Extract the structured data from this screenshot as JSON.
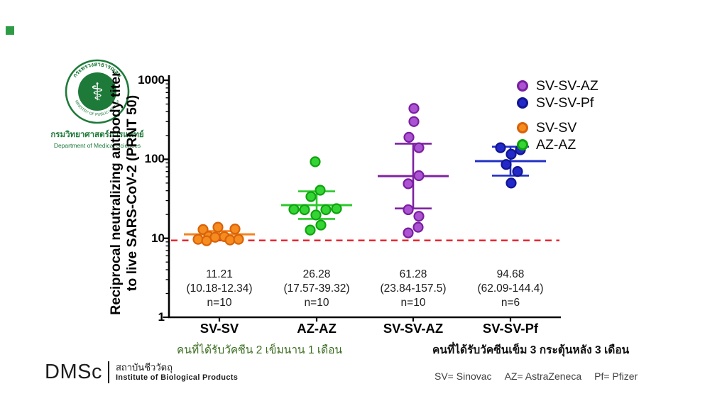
{
  "logo": {
    "rim_text_top": "กระทรวงสาธารณสุข",
    "rim_text_bottom": "MINISTRY OF PUBLIC HEALTH",
    "symbol": "⚕",
    "name_thai": "กรมวิทยาศาสตร์การแพทย์",
    "name_english": "Department of Medical Sciences",
    "color": "#1E7A39"
  },
  "chart_data": {
    "type": "scatter",
    "ylabel_line1": "Reciprocal neutralizing antibody titer",
    "ylabel_line2": "to live SARS-CoV-2 (PRNT 50)",
    "yscale": "log",
    "ylim": [
      1,
      1000
    ],
    "ytick_labels": [
      "1000",
      "100",
      "10",
      "1"
    ],
    "grid": false,
    "detection_line": {
      "value": 9.4,
      "color": "#EC1C24",
      "style": "dashed"
    },
    "groups": [
      {
        "label": "SV-SV",
        "fill": "#F68B1F",
        "stroke": "#D86309",
        "line": "#F5821E",
        "median": 11.21,
        "ci_low": 10.18,
        "ci_high": 12.34,
        "n": 10,
        "stats": [
          "11.21",
          "(10.18-12.34)",
          "n=10"
        ],
        "points": [
          [
            -23,
            12.9
          ],
          [
            -2,
            13.8
          ],
          [
            22,
            13.1
          ],
          [
            -15,
            10.6
          ],
          [
            -6,
            10.3
          ],
          [
            7,
            10.5
          ],
          [
            -30,
            9.7
          ],
          [
            -18,
            9.3
          ],
          [
            15,
            9.5
          ],
          [
            27,
            9.7
          ]
        ]
      },
      {
        "label": "AZ-AZ",
        "fill": "#35D435",
        "stroke": "#0FA30F",
        "line": "#2BC92B",
        "median": 26.28,
        "ci_low": 17.57,
        "ci_high": 39.32,
        "n": 10,
        "stats": [
          "26.28",
          "(17.57-39.32)",
          "n=10"
        ],
        "points": [
          [
            -2,
            93
          ],
          [
            5,
            40.6
          ],
          [
            -8,
            33.7
          ],
          [
            -32,
            23.2
          ],
          [
            -17,
            23
          ],
          [
            13,
            23
          ],
          [
            28,
            23.7
          ],
          [
            -1,
            19.7
          ],
          [
            6,
            14.7
          ],
          [
            -9,
            12.7
          ]
        ]
      },
      {
        "label": "SV-SV-AZ",
        "fill": "#AB53D2",
        "stroke": "#7A1FA0",
        "line": "#7E22A3",
        "median": 61.28,
        "ci_low": 23.84,
        "ci_high": 157.5,
        "n": 10,
        "stats": [
          "61.28",
          "(23.84-157.5)",
          "n=10"
        ],
        "points": [
          [
            1,
            440
          ],
          [
            1,
            300
          ],
          [
            -6,
            190
          ],
          [
            8,
            140
          ],
          [
            8,
            62
          ],
          [
            -7,
            49
          ],
          [
            -7,
            23
          ],
          [
            8,
            19
          ],
          [
            7,
            13.8
          ],
          [
            -7,
            11.7
          ]
        ]
      },
      {
        "label": "SV-SV-Pf",
        "fill": "#2328C8",
        "stroke": "#111693",
        "line": "#2130C4",
        "median": 94.68,
        "ci_low": 62.09,
        "ci_high": 144.4,
        "n": 6,
        "stats": [
          "94.68",
          "(62.09-144.4)",
          "n=6"
        ],
        "points": [
          [
            -14,
            140
          ],
          [
            14,
            132
          ],
          [
            1,
            116
          ],
          [
            -6,
            86
          ],
          [
            10,
            70
          ],
          [
            1,
            50
          ]
        ]
      }
    ],
    "legend_order": [
      "SV-SV-AZ",
      "SV-SV-Pf",
      "SV-SV",
      "AZ-AZ"
    ],
    "legend_position": "top-right"
  },
  "captions": {
    "group_left": "คนที่ได้รับวัคซีน 2 เข็มนาน 1 เดือน",
    "group_right": "คนที่ได้รับวัคซีนเข็ม 3 กระตุ้นหลัง 3 เดือน"
  },
  "footer": {
    "org_abbr": "DMSc",
    "org_thai": "สถาบันชีววัตถุ",
    "org_english": "Institute of Biological Products",
    "key": [
      "SV= Sinovac",
      "AZ= AstraZeneca",
      "Pf= Pfizer"
    ]
  }
}
